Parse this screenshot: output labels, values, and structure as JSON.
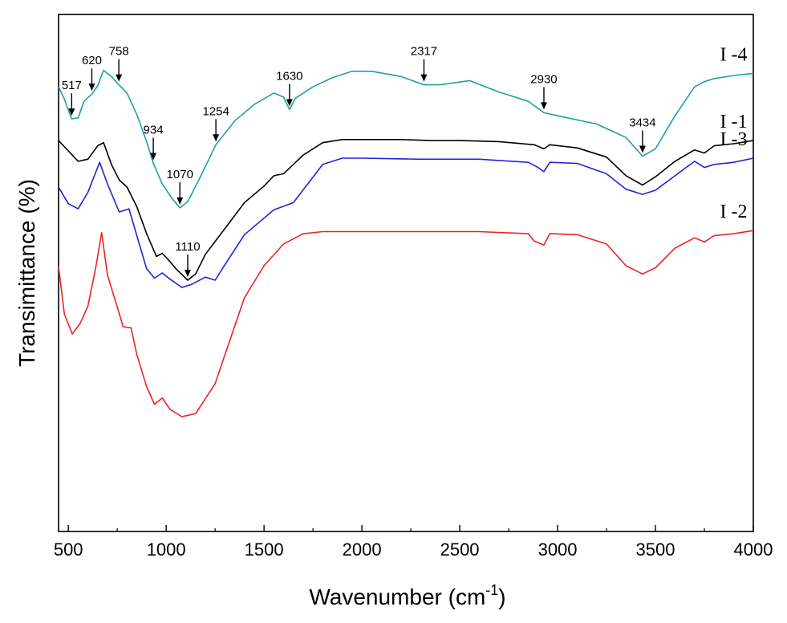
{
  "chart_data": {
    "type": "line",
    "title": "",
    "xlabel": "Wavenumber (cm",
    "xlabel_sup": "-1",
    "xlabel_end": ")",
    "ylabel": "Transimittance (%)",
    "xlim": [
      450,
      4000
    ],
    "ylim": [
      0,
      100
    ],
    "x_ticks": [
      "500",
      "1000",
      "1500",
      "2000",
      "2500",
      "3000",
      "3500",
      "4000"
    ],
    "y_ticks": [],
    "grid": false,
    "series": [
      {
        "name": "I -1",
        "color": "#000000",
        "points": [
          [
            450,
            75.6
          ],
          [
            500,
            73.6
          ],
          [
            550,
            71.6
          ],
          [
            600,
            72.0
          ],
          [
            650,
            74.6
          ],
          [
            680,
            75.2
          ],
          [
            720,
            71.0
          ],
          [
            760,
            68.0
          ],
          [
            800,
            66.6
          ],
          [
            850,
            62.8
          ],
          [
            900,
            57.6
          ],
          [
            950,
            53.2
          ],
          [
            980,
            53.8
          ],
          [
            1010,
            52.6
          ],
          [
            1050,
            50.8
          ],
          [
            1110,
            48.6
          ],
          [
            1150,
            49.8
          ],
          [
            1200,
            53.6
          ],
          [
            1300,
            58.6
          ],
          [
            1400,
            63.6
          ],
          [
            1500,
            66.8
          ],
          [
            1550,
            68.8
          ],
          [
            1600,
            69.2
          ],
          [
            1700,
            72.8
          ],
          [
            1800,
            75.2
          ],
          [
            1900,
            75.8
          ],
          [
            2000,
            75.8
          ],
          [
            2200,
            75.8
          ],
          [
            2350,
            75.6
          ],
          [
            2500,
            75.6
          ],
          [
            2700,
            75.4
          ],
          [
            2880,
            74.8
          ],
          [
            2930,
            74.0
          ],
          [
            2960,
            74.8
          ],
          [
            3100,
            74.2
          ],
          [
            3250,
            72.4
          ],
          [
            3350,
            68.8
          ],
          [
            3434,
            67.0
          ],
          [
            3500,
            68.6
          ],
          [
            3600,
            71.6
          ],
          [
            3700,
            73.8
          ],
          [
            3750,
            73.2
          ],
          [
            3800,
            74.6
          ],
          [
            3900,
            75.0
          ],
          [
            4000,
            75.6
          ]
        ]
      },
      {
        "name": "I -2",
        "color": "#ee2222",
        "points": [
          [
            450,
            51.2
          ],
          [
            480,
            42.0
          ],
          [
            520,
            38.2
          ],
          [
            560,
            40.2
          ],
          [
            600,
            43.6
          ],
          [
            640,
            51.0
          ],
          [
            670,
            57.8
          ],
          [
            700,
            49.6
          ],
          [
            750,
            43.4
          ],
          [
            780,
            39.6
          ],
          [
            820,
            39.4
          ],
          [
            850,
            34.2
          ],
          [
            900,
            28.0
          ],
          [
            940,
            24.6
          ],
          [
            980,
            25.8
          ],
          [
            1020,
            23.6
          ],
          [
            1080,
            22.2
          ],
          [
            1150,
            22.8
          ],
          [
            1250,
            28.6
          ],
          [
            1300,
            34.2
          ],
          [
            1400,
            45.2
          ],
          [
            1500,
            51.4
          ],
          [
            1600,
            55.6
          ],
          [
            1700,
            57.6
          ],
          [
            1800,
            58.0
          ],
          [
            2000,
            58.0
          ],
          [
            2300,
            58.0
          ],
          [
            2600,
            58.0
          ],
          [
            2850,
            57.6
          ],
          [
            2880,
            56.2
          ],
          [
            2930,
            55.4
          ],
          [
            2960,
            57.6
          ],
          [
            3100,
            57.4
          ],
          [
            3250,
            55.6
          ],
          [
            3350,
            51.4
          ],
          [
            3434,
            49.8
          ],
          [
            3500,
            51.0
          ],
          [
            3600,
            54.8
          ],
          [
            3700,
            56.8
          ],
          [
            3750,
            56.0
          ],
          [
            3800,
            57.2
          ],
          [
            3900,
            57.6
          ],
          [
            4000,
            58.2
          ]
        ]
      },
      {
        "name": "I -3",
        "color": "#2222dd",
        "points": [
          [
            450,
            66.6
          ],
          [
            500,
            63.4
          ],
          [
            550,
            62.4
          ],
          [
            600,
            65.6
          ],
          [
            660,
            71.4
          ],
          [
            700,
            67.2
          ],
          [
            760,
            61.8
          ],
          [
            810,
            62.4
          ],
          [
            850,
            57.2
          ],
          [
            900,
            50.8
          ],
          [
            940,
            49.0
          ],
          [
            980,
            50.0
          ],
          [
            1020,
            48.8
          ],
          [
            1080,
            47.2
          ],
          [
            1130,
            47.8
          ],
          [
            1200,
            49.2
          ],
          [
            1250,
            48.6
          ],
          [
            1300,
            51.6
          ],
          [
            1400,
            57.4
          ],
          [
            1550,
            62.2
          ],
          [
            1650,
            63.6
          ],
          [
            1800,
            71.0
          ],
          [
            1900,
            72.2
          ],
          [
            2000,
            72.2
          ],
          [
            2300,
            72.0
          ],
          [
            2600,
            72.0
          ],
          [
            2850,
            71.4
          ],
          [
            2900,
            70.4
          ],
          [
            2930,
            69.6
          ],
          [
            2960,
            71.4
          ],
          [
            3100,
            71.2
          ],
          [
            3250,
            69.2
          ],
          [
            3350,
            66.2
          ],
          [
            3434,
            65.2
          ],
          [
            3500,
            66.0
          ],
          [
            3600,
            68.8
          ],
          [
            3700,
            71.6
          ],
          [
            3750,
            70.4
          ],
          [
            3800,
            71.0
          ],
          [
            3900,
            71.4
          ],
          [
            4000,
            72.2
          ]
        ]
      },
      {
        "name": "I -4",
        "color": "#20a0a0",
        "points": [
          [
            450,
            86.0
          ],
          [
            480,
            83.6
          ],
          [
            517,
            79.8
          ],
          [
            550,
            80.0
          ],
          [
            580,
            83.2
          ],
          [
            620,
            84.6
          ],
          [
            650,
            86.2
          ],
          [
            680,
            89.2
          ],
          [
            720,
            88.0
          ],
          [
            758,
            86.4
          ],
          [
            800,
            84.8
          ],
          [
            850,
            80.6
          ],
          [
            900,
            75.4
          ],
          [
            934,
            71.2
          ],
          [
            980,
            67.2
          ],
          [
            1030,
            64.4
          ],
          [
            1070,
            62.6
          ],
          [
            1110,
            63.8
          ],
          [
            1180,
            69.0
          ],
          [
            1254,
            74.8
          ],
          [
            1350,
            79.4
          ],
          [
            1450,
            82.6
          ],
          [
            1550,
            84.8
          ],
          [
            1600,
            84.0
          ],
          [
            1630,
            81.6
          ],
          [
            1660,
            83.8
          ],
          [
            1750,
            86.0
          ],
          [
            1850,
            87.8
          ],
          [
            1950,
            89.0
          ],
          [
            2050,
            89.0
          ],
          [
            2200,
            88.0
          ],
          [
            2317,
            86.4
          ],
          [
            2400,
            86.4
          ],
          [
            2550,
            87.2
          ],
          [
            2700,
            85.0
          ],
          [
            2850,
            83.2
          ],
          [
            2930,
            81.0
          ],
          [
            3050,
            80.0
          ],
          [
            3200,
            78.8
          ],
          [
            3350,
            76.2
          ],
          [
            3434,
            72.6
          ],
          [
            3500,
            74.0
          ],
          [
            3600,
            80.4
          ],
          [
            3700,
            86.0
          ],
          [
            3750,
            87.0
          ],
          [
            3800,
            87.6
          ],
          [
            3900,
            88.2
          ],
          [
            4000,
            88.6
          ]
        ]
      }
    ],
    "annotations": [
      {
        "label": "517",
        "x": 517,
        "y": 79.8
      },
      {
        "label": "620",
        "x": 620,
        "y": 84.6
      },
      {
        "label": "758",
        "x": 758,
        "y": 86.4
      },
      {
        "label": "934",
        "x": 934,
        "y": 71.2
      },
      {
        "label": "1070",
        "x": 1070,
        "y": 62.6
      },
      {
        "label": "1254",
        "x": 1254,
        "y": 74.8
      },
      {
        "label": "1630",
        "x": 1630,
        "y": 81.6
      },
      {
        "label": "2317",
        "x": 2317,
        "y": 86.4
      },
      {
        "label": "2930",
        "x": 2930,
        "y": 81.0
      },
      {
        "label": "3434",
        "x": 3434,
        "y": 72.6
      },
      {
        "label": "1110",
        "x": 1110,
        "y": 48.6
      }
    ]
  }
}
